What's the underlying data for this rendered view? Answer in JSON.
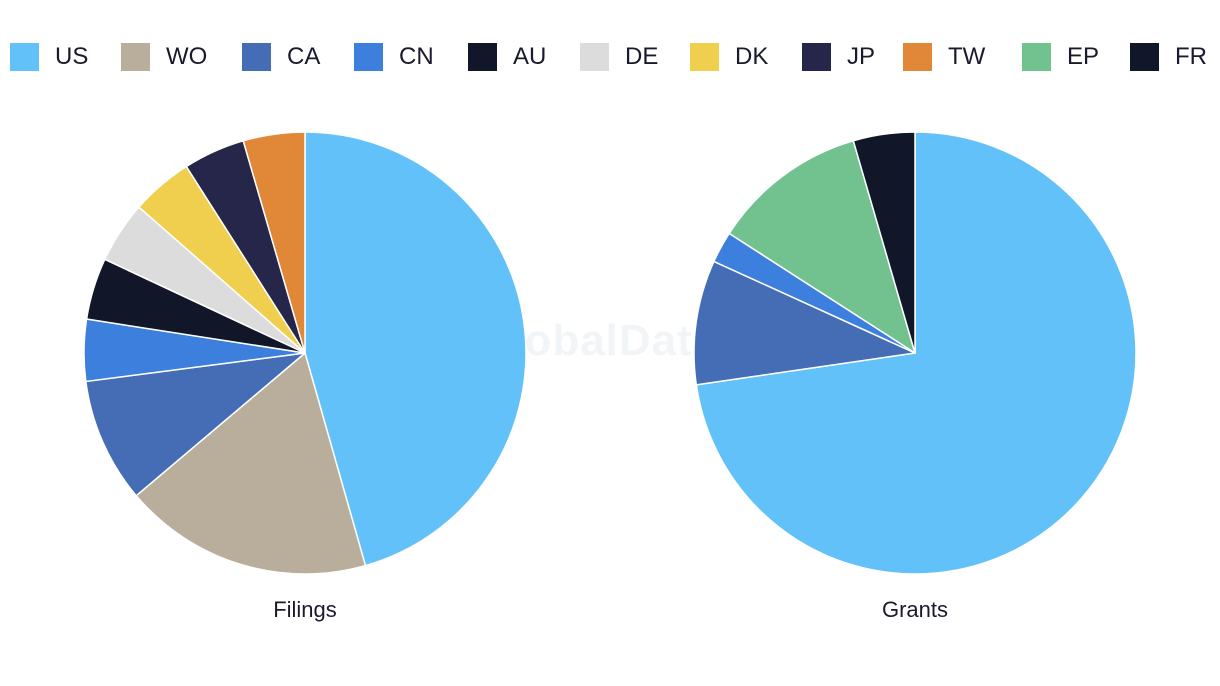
{
  "legend": [
    {
      "label": "US",
      "color": "#62c1f9"
    },
    {
      "label": "WO",
      "color": "#b9ad9c"
    },
    {
      "label": "CA",
      "color": "#456db6"
    },
    {
      "label": "CN",
      "color": "#3d7fdc"
    },
    {
      "label": "AU",
      "color": "#121629"
    },
    {
      "label": "DE",
      "color": "#dcdcdc"
    },
    {
      "label": "DK",
      "color": "#f0cf4f"
    },
    {
      "label": "JP",
      "color": "#25264a"
    },
    {
      "label": "TW",
      "color": "#e08838"
    },
    {
      "label": "EP",
      "color": "#72c290"
    },
    {
      "label": "FR",
      "color": "#121629"
    }
  ],
  "watermark": "GlobalData",
  "chart_data": [
    {
      "type": "pie",
      "title": "Filings",
      "slices": [
        {
          "label": "US",
          "value": 45.5
        },
        {
          "label": "WO",
          "value": 18.2
        },
        {
          "label": "CA",
          "value": 9.1
        },
        {
          "label": "CN",
          "value": 4.5
        },
        {
          "label": "AU",
          "value": 4.5
        },
        {
          "label": "DE",
          "value": 4.5
        },
        {
          "label": "DK",
          "value": 4.5
        },
        {
          "label": "JP",
          "value": 4.5
        },
        {
          "label": "TW",
          "value": 4.5
        }
      ]
    },
    {
      "type": "pie",
      "title": "Grants",
      "slices": [
        {
          "label": "US",
          "value": 72.7
        },
        {
          "label": "CA",
          "value": 9.1
        },
        {
          "label": "CN",
          "value": 2.3
        },
        {
          "label": "EP",
          "value": 11.4
        },
        {
          "label": "FR",
          "value": 4.5
        }
      ]
    }
  ]
}
